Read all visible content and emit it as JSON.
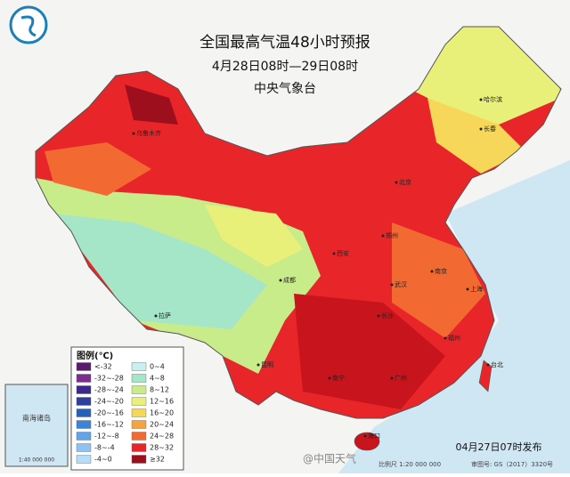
{
  "header": {
    "title": "全国最高气温48小时预报",
    "subtitle": "4月28日08时—29日08时",
    "publisher": "中央气象台"
  },
  "legend": {
    "title": "图例(℃)",
    "items": [
      {
        "label": "<-32",
        "color": "#5a1a6e"
      },
      {
        "label": "-32~-28",
        "color": "#7a2f8f"
      },
      {
        "label": "-28~-24",
        "color": "#3b2a8c"
      },
      {
        "label": "-24~-20",
        "color": "#2e3f9e"
      },
      {
        "label": "-20~-16",
        "color": "#2860b8"
      },
      {
        "label": "-16~-12",
        "color": "#3f83d6"
      },
      {
        "label": "-12~-8",
        "color": "#62a4e8"
      },
      {
        "label": "-8~-4",
        "color": "#8cc3f2"
      },
      {
        "label": "-4~0",
        "color": "#b7dcf7"
      },
      {
        "label": "0~4",
        "color": "#c8f0ee"
      },
      {
        "label": "4~8",
        "color": "#a6e6c8"
      },
      {
        "label": "8~12",
        "color": "#c9ec8a"
      },
      {
        "label": "12~16",
        "color": "#e9f07a"
      },
      {
        "label": "16~20",
        "color": "#f7d75a"
      },
      {
        "label": "20~24",
        "color": "#f7a240"
      },
      {
        "label": "24~28",
        "color": "#f26a32"
      },
      {
        "label": "28~32",
        "color": "#e8262a"
      },
      {
        "label": "≥32",
        "color": "#9e0f1e"
      }
    ]
  },
  "cities": [
    "乌鲁木齐",
    "拉萨",
    "哈尔滨",
    "长春",
    "北京",
    "郑州",
    "西安",
    "成都",
    "上海",
    "南京",
    "武汉",
    "长沙",
    "南宁",
    "广州",
    "福州",
    "台北",
    "海口",
    "昆明"
  ],
  "inset": {
    "label": "南海诸岛",
    "scale": "1:40 000 000"
  },
  "footer": {
    "published": "04月27日07时发布",
    "scale": "比例尺 1:20 000 000",
    "map_no": "审图号: GS（2017）3320号",
    "watermark": "@中国天气"
  }
}
